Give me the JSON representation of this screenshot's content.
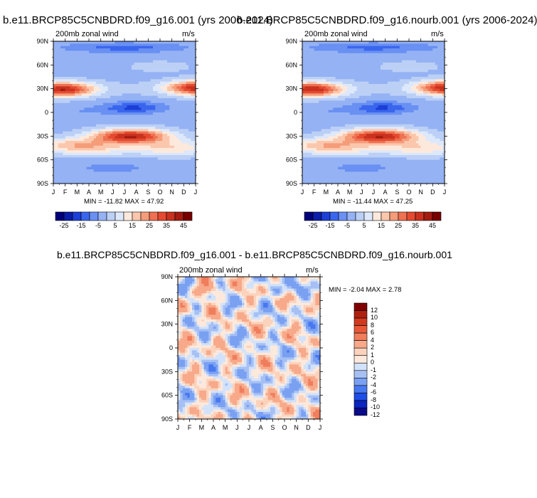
{
  "chart_data": [
    {
      "type": "heatmap",
      "title": "b.e11.BRCP85C5CNBDRD.f09_g16.001 (yrs 2006-2024)",
      "left_label": "200mb zonal wind",
      "right_label": "m/s",
      "x_ticks": [
        "J",
        "F",
        "M",
        "A",
        "M",
        "J",
        "J",
        "A",
        "S",
        "O",
        "N",
        "D",
        "J"
      ],
      "y_ticks": [
        "90N",
        "60N",
        "30N",
        "0",
        "30S",
        "60S",
        "90S"
      ],
      "stats": "MIN = -11.82  MAX = 47.92",
      "min": -11.82,
      "max": 47.92,
      "colorbar_labels": [
        "-25",
        "-15",
        "-5",
        "5",
        "15",
        "25",
        "35",
        "45"
      ]
    },
    {
      "type": "heatmap",
      "title": "b.e11.BRCP85C5CNBDRD.f09_g16.nourb.001 (yrs 2006-2024)",
      "left_label": "200mb zonal wind",
      "right_label": "m/s",
      "x_ticks": [
        "J",
        "F",
        "M",
        "A",
        "M",
        "J",
        "J",
        "A",
        "S",
        "O",
        "N",
        "D",
        "J"
      ],
      "y_ticks": [
        "90N",
        "60N",
        "30N",
        "0",
        "30S",
        "60S",
        "90S"
      ],
      "stats": "MIN = -11.44  MAX = 47.25",
      "min": -11.44,
      "max": 47.25,
      "colorbar_labels": [
        "-25",
        "-15",
        "-5",
        "5",
        "15",
        "25",
        "35",
        "45"
      ]
    },
    {
      "type": "heatmap",
      "title": "b.e11.BRCP85C5CNBDRD.f09_g16.001 - b.e11.BRCP85C5CNBDRD.f09_g16.nourb.001",
      "left_label": "200mb zonal wind",
      "right_label": "m/s",
      "x_ticks": [
        "J",
        "F",
        "M",
        "A",
        "M",
        "J",
        "J",
        "A",
        "S",
        "O",
        "N",
        "D",
        "J"
      ],
      "y_ticks": [
        "90N",
        "60N",
        "30N",
        "0",
        "30S",
        "60S",
        "90S"
      ],
      "stats": "MIN =  -2.04  MAX =   2.78",
      "min": -2.04,
      "max": 2.78,
      "colorbar_labels": [
        "12",
        "10",
        "8",
        "6",
        "4",
        "2",
        "1",
        "0",
        "-1",
        "-2",
        "-4",
        "-6",
        "-8",
        "-10",
        "-12"
      ]
    }
  ],
  "colors": {
    "wind_palette": [
      "#00007a",
      "#0a1ea8",
      "#1c3fd6",
      "#3a66ee",
      "#6990f2",
      "#95b2f4",
      "#bcd0f6",
      "#dde8fb",
      "#fde9dc",
      "#fbc7ac",
      "#f59c79",
      "#ee7152",
      "#e54a31",
      "#c8321e",
      "#a21c10",
      "#780000"
    ],
    "diff_palette": [
      "#0a0a8c",
      "#0a25c0",
      "#1e4ee6",
      "#4678f0",
      "#7aa0f2",
      "#a6c0f4",
      "#d2e2fa",
      "#fde9dc",
      "#fbd2bc",
      "#f7a98a",
      "#f07d5c",
      "#e75838",
      "#d23a20",
      "#b0200f",
      "#800000"
    ]
  }
}
